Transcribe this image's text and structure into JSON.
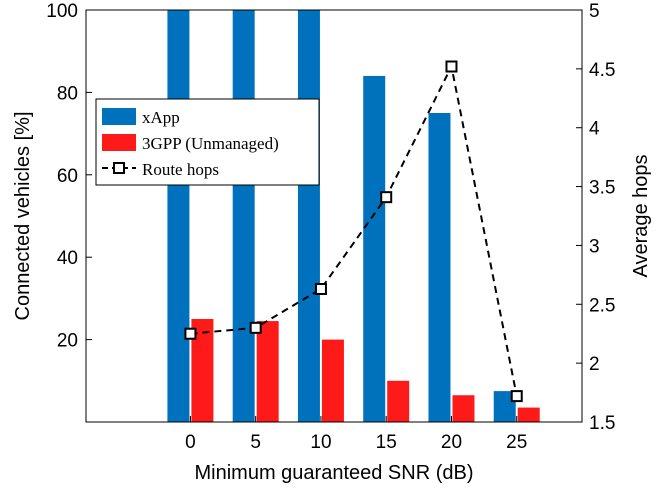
{
  "chart_data": {
    "type": "bar",
    "categories": [
      "0",
      "5",
      "10",
      "15",
      "20",
      "25"
    ],
    "x": [
      0,
      5,
      10,
      15,
      20,
      25
    ],
    "xlabel": "Minimum guaranteed SNR (dB)",
    "ylabel_left": "Connected vehicles [%]",
    "ylabel_right": "Average hops",
    "xlim": [
      -8,
      30
    ],
    "ylim_left": [
      0,
      100
    ],
    "ylim_right": [
      1.5,
      5
    ],
    "left_ticks": [
      "20",
      "40",
      "60",
      "80",
      "100"
    ],
    "right_ticks": [
      "1.5",
      "2",
      "2.5",
      "3",
      "3.5",
      "4",
      "4.5",
      "5"
    ],
    "x_ticks": [
      "0",
      "5",
      "10",
      "15",
      "20",
      "25"
    ],
    "grid": false,
    "legend_position": "upper-left",
    "series": [
      {
        "name": "xApp",
        "kind": "bar",
        "axis": "left",
        "color": "#0072BD",
        "values": [
          100,
          100,
          100,
          84,
          75,
          7.5
        ]
      },
      {
        "name": "3GPP (Unmanaged)",
        "kind": "bar",
        "axis": "left",
        "color": "#FF1A1A",
        "values": [
          25,
          24.5,
          20,
          10,
          6.5,
          3.5
        ]
      },
      {
        "name": "Route hops",
        "kind": "line",
        "axis": "right",
        "color": "#000000",
        "line_style": "dashed",
        "marker": "square",
        "values": [
          2.25,
          2.3,
          2.63,
          3.41,
          4.52,
          1.72
        ]
      }
    ]
  }
}
